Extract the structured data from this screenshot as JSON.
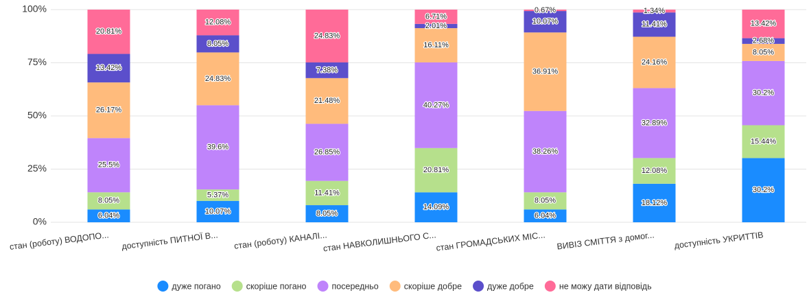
{
  "chart_data": {
    "type": "stacked_bar",
    "categories": [
      "стан (роботу) ВОДОПО...",
      "доступність ПИТНОЇ В...",
      "стан (роботу) КАНАЛІ...",
      "стан НАВКОЛИШНЬОГО С...",
      "стан ГРОМАДСЬКИХ МІС...",
      "ВИВІЗ СМІТТЯ з домог...",
      "доступність УКРИТТІВ"
    ],
    "series": [
      {
        "name": "дуже погано",
        "color": "#1a8cff",
        "values": [
          6.04,
          10.07,
          8.05,
          14.09,
          6.04,
          18.12,
          30.2
        ],
        "value_labels": [
          "6.04%",
          "10.07%",
          "8.05%",
          "14.09%",
          "6.04%",
          "18.12%",
          "30.2%"
        ]
      },
      {
        "name": "скоріше погано",
        "color": "#b6e08c",
        "values": [
          8.05,
          5.37,
          11.41,
          20.81,
          8.05,
          12.08,
          15.44
        ],
        "value_labels": [
          "8.05%",
          "5.37%",
          "11.41%",
          "20.81%",
          "8.05%",
          "12.08%",
          "15.44%"
        ]
      },
      {
        "name": "посередньо",
        "color": "#bf84fb",
        "values": [
          25.5,
          39.6,
          26.85,
          40.27,
          38.26,
          32.89,
          30.2
        ],
        "value_labels": [
          "25.5%",
          "39.6%",
          "26.85%",
          "40.27%",
          "38.26%",
          "32.89%",
          "30.2%"
        ]
      },
      {
        "name": "скоріше добре",
        "color": "#ffbb7c",
        "values": [
          26.17,
          24.83,
          21.48,
          16.11,
          36.91,
          24.16,
          8.05
        ],
        "value_labels": [
          "26.17%",
          "24.83%",
          "21.48%",
          "16.11%",
          "36.91%",
          "24.16%",
          "8.05%"
        ]
      },
      {
        "name": "дуже добре",
        "color": "#5b4fcb",
        "values": [
          13.42,
          8.05,
          7.38,
          2.01,
          10.07,
          11.41,
          2.68
        ],
        "value_labels": [
          "13.42%",
          "8.05%",
          "7.38%",
          "2.01%",
          "10.07%",
          "11.41%",
          "2.68%"
        ]
      },
      {
        "name": "не можу дати відповідь",
        "color": "#ff6b98",
        "values": [
          20.81,
          12.08,
          24.83,
          6.71,
          0.67,
          1.34,
          13.42
        ],
        "value_labels": [
          "20.81%",
          "12.08%",
          "24.83%",
          "6.71%",
          "0.67%",
          "1.34%",
          "13.42%"
        ]
      }
    ],
    "ylim": [
      0,
      100
    ],
    "yticks": [
      {
        "value": 0,
        "label": "0%"
      },
      {
        "value": 25,
        "label": "25%"
      },
      {
        "value": 50,
        "label": "50%"
      },
      {
        "value": 75,
        "label": "75%"
      },
      {
        "value": 100,
        "label": "100%"
      }
    ],
    "grid": true,
    "legend": "bottom"
  }
}
